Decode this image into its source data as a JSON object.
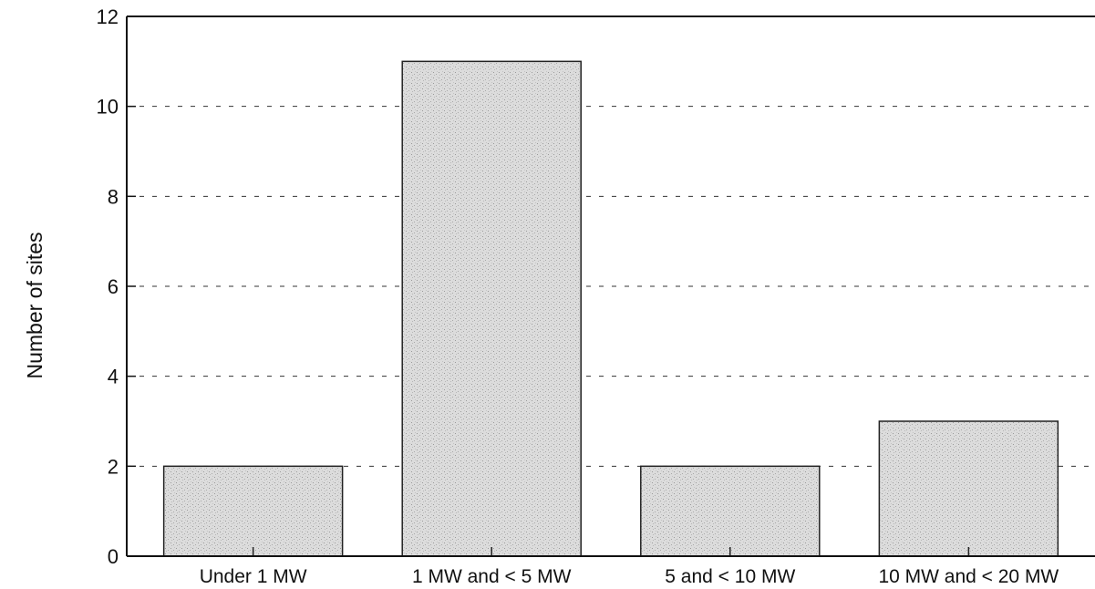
{
  "chart_data": {
    "type": "bar",
    "categories": [
      "Under 1 MW",
      "1 MW and < 5 MW",
      "5 and < 10 MW",
      "10 MW and < 20 MW"
    ],
    "values": [
      2,
      11,
      2,
      3
    ],
    "ylabel": "Number of sites",
    "xlabel": "",
    "ylim": [
      0,
      12
    ],
    "yticks": [
      "0",
      "2",
      "4",
      "6",
      "8",
      "10",
      "12"
    ],
    "grid": "horizontal dashed",
    "bar_color": "#d9d9d9"
  }
}
